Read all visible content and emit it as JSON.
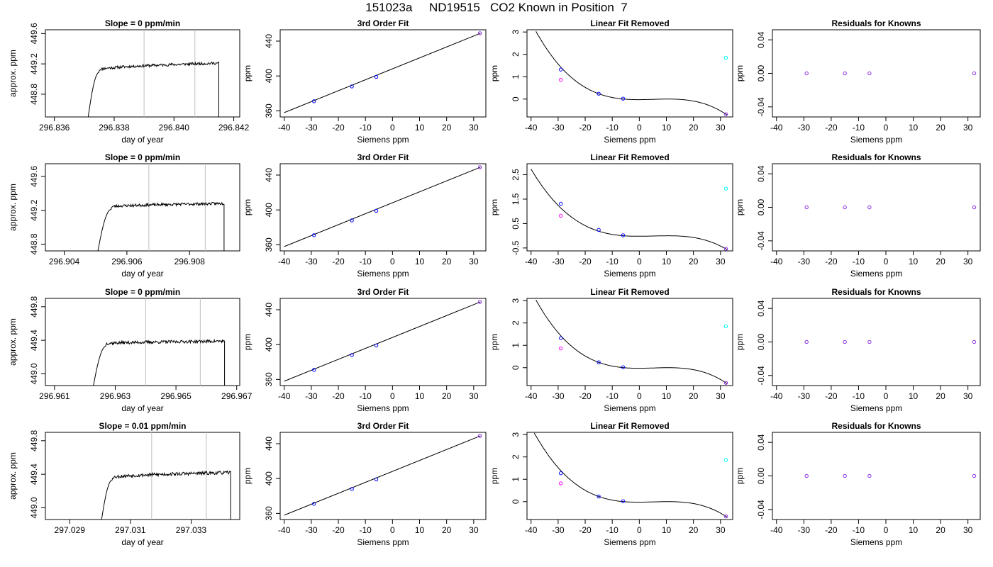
{
  "title": "151023a     ND19515   CO2 Known in Position  7",
  "colors": {
    "axis": "#000000",
    "line": "#000000",
    "vline": "#bebebe",
    "blue": "#0000ff",
    "magenta": "#ff00ff",
    "cyan": "#00ffff",
    "purple": "#8a2be2",
    "pink": "#ff66cc"
  },
  "chart_data": [
    {
      "type": "line",
      "title": "Slope =  0  ppm/min",
      "xlabel": "day of year",
      "ylabel": "approx. ppm",
      "xlim": [
        296.8357,
        296.8422
      ],
      "ylim": [
        448.5,
        449.65
      ],
      "xticks": [
        296.836,
        296.838,
        296.84,
        296.842
      ],
      "xtick_labels": [
        "296.836",
        "296.838",
        "296.840",
        "296.842"
      ],
      "yticks": [
        448.8,
        449.2,
        449.6
      ],
      "ytick_labels": [
        "448.8",
        "449.2",
        "449.6"
      ],
      "vlines": [
        296.839,
        296.8407
      ],
      "trace": {
        "x_start": 296.837,
        "x_rise_end": 296.8375,
        "x_end": 296.8415,
        "plateau_start": 449.12,
        "plateau_end": 449.21,
        "noise": 0.018,
        "seed": 11
      }
    },
    {
      "type": "scatter",
      "title": "3rd Order Fit",
      "xlabel": "Siemens ppm",
      "ylabel": "ppm",
      "xlim": [
        -41.5,
        34.5
      ],
      "ylim": [
        353,
        453
      ],
      "xticks": [
        -40,
        -30,
        -20,
        -10,
        0,
        10,
        20,
        30
      ],
      "xtick_labels": [
        "-40",
        "-30",
        "-20",
        "-10",
        "0",
        "10",
        "20",
        "30"
      ],
      "yticks": [
        360,
        400,
        440
      ],
      "ytick_labels": [
        "360",
        "400",
        "440"
      ],
      "line_x": [
        -40,
        32.5
      ],
      "line_y": [
        358,
        449
      ],
      "points": [
        {
          "x": -29.0,
          "y": 371,
          "color": "blue"
        },
        {
          "x": -15.0,
          "y": 388,
          "color": "blue"
        },
        {
          "x": -6.0,
          "y": 399,
          "color": "blue"
        },
        {
          "x": 32.3,
          "y": 449,
          "color": "purple"
        }
      ]
    },
    {
      "type": "scatter",
      "title": "Linear Fit Removed",
      "xlabel": "Siemens ppm",
      "ylabel": "ppm",
      "xlim": [
        -41.5,
        34.5
      ],
      "ylim": [
        -0.8,
        3.1
      ],
      "xticks": [
        -40,
        -30,
        -20,
        -10,
        0,
        10,
        20,
        30
      ],
      "xtick_labels": [
        "-40",
        "-30",
        "-20",
        "-10",
        "0",
        "10",
        "20",
        "30"
      ],
      "yticks": [
        0,
        1,
        2,
        3
      ],
      "ytick_labels": [
        "0",
        "1",
        "2",
        "3"
      ],
      "curve": {
        "x_from": -40,
        "x_to": 32.5,
        "roots": [
          -5.8,
          10.6
        ],
        "anchor_x": 32.0,
        "anchor_y": -0.68,
        "offset": 0
      },
      "points": [
        {
          "x": -29.0,
          "y": 1.32,
          "color": "blue"
        },
        {
          "x": -15.0,
          "y": 0.24,
          "color": "blue"
        },
        {
          "x": -6.0,
          "y": 0.02,
          "color": "blue"
        },
        {
          "x": 32.0,
          "y": -0.68,
          "color": "purple"
        },
        {
          "x": -29.0,
          "y": 0.86,
          "color": "magenta"
        },
        {
          "x": 32.0,
          "y": 1.85,
          "color": "cyan"
        }
      ]
    },
    {
      "type": "scatter",
      "title": "Residuals for Knowns",
      "xlabel": "Siemens ppm",
      "ylabel": "ppm",
      "xlim": [
        -41.5,
        34.5
      ],
      "ylim": [
        -0.052,
        0.052
      ],
      "xticks": [
        -40,
        -30,
        -20,
        -10,
        0,
        10,
        20,
        30
      ],
      "xtick_labels": [
        "-40",
        "-30",
        "-20",
        "-10",
        "0",
        "10",
        "20",
        "30"
      ],
      "yticks": [
        -0.04,
        0.0,
        0.04
      ],
      "ytick_labels": [
        "-0.04",
        "0.00",
        "0.04"
      ],
      "points": [
        {
          "x": -29.0,
          "y": 0.0,
          "color": "purple"
        },
        {
          "x": -15.0,
          "y": 0.0,
          "color": "purple"
        },
        {
          "x": -6.0,
          "y": 0.0,
          "color": "purple"
        },
        {
          "x": 32.3,
          "y": 0.0,
          "color": "purple"
        }
      ]
    },
    {
      "type": "line",
      "title": "Slope =  0  ppm/min",
      "xlabel": "day of year",
      "ylabel": "approx. ppm",
      "xlim": [
        296.9034,
        296.9096
      ],
      "ylim": [
        448.72,
        449.75
      ],
      "xticks": [
        296.904,
        296.906,
        296.908
      ],
      "xtick_labels": [
        "296.904",
        "296.906",
        "296.908"
      ],
      "yticks": [
        448.8,
        449.2,
        449.6
      ],
      "ytick_labels": [
        "448.8",
        "449.2",
        "449.6"
      ],
      "vlines": [
        296.9067,
        296.9085
      ],
      "trace": {
        "x_start": 296.9049,
        "x_rise_end": 296.9055,
        "x_end": 296.9091,
        "plateau_start": 449.24,
        "plateau_end": 449.28,
        "noise": 0.016,
        "seed": 23
      }
    },
    {
      "type": "scatter",
      "title": "3rd Order Fit",
      "xlabel": "Siemens ppm",
      "ylabel": "ppm",
      "xlim": [
        -41.5,
        34.5
      ],
      "ylim": [
        353,
        453
      ],
      "xticks": [
        -40,
        -30,
        -20,
        -10,
        0,
        10,
        20,
        30
      ],
      "xtick_labels": [
        "-40",
        "-30",
        "-20",
        "-10",
        "0",
        "10",
        "20",
        "30"
      ],
      "yticks": [
        360,
        400,
        440
      ],
      "ytick_labels": [
        "360",
        "400",
        "440"
      ],
      "line_x": [
        -40,
        32.5
      ],
      "line_y": [
        358,
        449
      ],
      "points": [
        {
          "x": -29.0,
          "y": 371,
          "color": "blue"
        },
        {
          "x": -15.0,
          "y": 388,
          "color": "blue"
        },
        {
          "x": -6.0,
          "y": 399,
          "color": "blue"
        },
        {
          "x": 32.3,
          "y": 449,
          "color": "purple"
        }
      ]
    },
    {
      "type": "scatter",
      "title": "Linear Fit Removed",
      "xlabel": "Siemens ppm",
      "ylabel": "ppm",
      "xlim": [
        -41.5,
        34.5
      ],
      "ylim": [
        -0.62,
        2.95
      ],
      "xticks": [
        -40,
        -30,
        -20,
        -10,
        0,
        10,
        20,
        30
      ],
      "xtick_labels": [
        "-40",
        "-30",
        "-20",
        "-10",
        "0",
        "10",
        "20",
        "30"
      ],
      "yticks": [
        -0.5,
        0.5,
        1.5,
        2.5
      ],
      "ytick_labels": [
        "-0.5",
        "0.5",
        "1.5",
        "2.5"
      ],
      "curve": {
        "x_from": -40,
        "x_to": 32.5,
        "roots": [
          -5.8,
          10.6
        ],
        "anchor_x": 32.0,
        "anchor_y": -0.54,
        "offset": 0
      },
      "points": [
        {
          "x": -29.0,
          "y": 1.31,
          "color": "blue"
        },
        {
          "x": -15.0,
          "y": 0.24,
          "color": "blue"
        },
        {
          "x": -6.0,
          "y": 0.02,
          "color": "blue"
        },
        {
          "x": 32.0,
          "y": -0.54,
          "color": "purple"
        },
        {
          "x": -29.0,
          "y": 0.82,
          "color": "magenta"
        },
        {
          "x": 32.0,
          "y": 1.93,
          "color": "cyan"
        }
      ]
    },
    {
      "type": "scatter",
      "title": "Residuals for Knowns",
      "xlabel": "Siemens ppm",
      "ylabel": "ppm",
      "xlim": [
        -41.5,
        34.5
      ],
      "ylim": [
        -0.052,
        0.052
      ],
      "xticks": [
        -40,
        -30,
        -20,
        -10,
        0,
        10,
        20,
        30
      ],
      "xtick_labels": [
        "-40",
        "-30",
        "-20",
        "-10",
        "0",
        "10",
        "20",
        "30"
      ],
      "yticks": [
        -0.04,
        0.0,
        0.04
      ],
      "ytick_labels": [
        "-0.04",
        "0.00",
        "0.04"
      ],
      "points": [
        {
          "x": -29.0,
          "y": 0.0,
          "color": "purple"
        },
        {
          "x": -15.0,
          "y": 0.0,
          "color": "purple"
        },
        {
          "x": -6.0,
          "y": 0.0,
          "color": "purple"
        },
        {
          "x": 32.3,
          "y": 0.0,
          "color": "purple"
        }
      ]
    },
    {
      "type": "line",
      "title": "Slope =  0  ppm/min",
      "xlabel": "day of year",
      "ylabel": "approx. ppm",
      "xlim": [
        296.9607,
        296.9671
      ],
      "ylim": [
        448.86,
        449.9
      ],
      "xticks": [
        296.961,
        296.963,
        296.965,
        296.967
      ],
      "xtick_labels": [
        "296.961",
        "296.963",
        "296.965",
        "296.967"
      ],
      "yticks": [
        449.0,
        449.4,
        449.8
      ],
      "ytick_labels": [
        "449.0",
        "449.4",
        "449.8"
      ],
      "vlines": [
        296.964,
        296.9658
      ],
      "trace": {
        "x_start": 296.9621,
        "x_rise_end": 296.9627,
        "x_end": 296.9666,
        "plateau_start": 449.36,
        "plateau_end": 449.39,
        "noise": 0.018,
        "seed": 37
      }
    },
    {
      "type": "scatter",
      "title": "3rd Order Fit",
      "xlabel": "Siemens ppm",
      "ylabel": "ppm",
      "xlim": [
        -41.5,
        34.5
      ],
      "ylim": [
        353,
        453
      ],
      "xticks": [
        -40,
        -30,
        -20,
        -10,
        0,
        10,
        20,
        30
      ],
      "xtick_labels": [
        "-40",
        "-30",
        "-20",
        "-10",
        "0",
        "10",
        "20",
        "30"
      ],
      "yticks": [
        360,
        400,
        440
      ],
      "ytick_labels": [
        "360",
        "400",
        "440"
      ],
      "line_x": [
        -40,
        32.5
      ],
      "line_y": [
        358,
        449
      ],
      "points": [
        {
          "x": -29.0,
          "y": 371,
          "color": "blue"
        },
        {
          "x": -15.0,
          "y": 388,
          "color": "blue"
        },
        {
          "x": -6.0,
          "y": 399,
          "color": "blue"
        },
        {
          "x": 32.3,
          "y": 449,
          "color": "purple"
        }
      ]
    },
    {
      "type": "scatter",
      "title": "Linear Fit Removed",
      "xlabel": "Siemens ppm",
      "ylabel": "ppm",
      "xlim": [
        -41.5,
        34.5
      ],
      "ylim": [
        -0.8,
        3.1
      ],
      "xticks": [
        -40,
        -30,
        -20,
        -10,
        0,
        10,
        20,
        30
      ],
      "xtick_labels": [
        "-40",
        "-30",
        "-20",
        "-10",
        "0",
        "10",
        "20",
        "30"
      ],
      "yticks": [
        0,
        1,
        2,
        3
      ],
      "ytick_labels": [
        "0",
        "1",
        "2",
        "3"
      ],
      "curve": {
        "x_from": -40,
        "x_to": 32.5,
        "roots": [
          -5.8,
          10.6
        ],
        "anchor_x": 32.0,
        "anchor_y": -0.68,
        "offset": 0
      },
      "points": [
        {
          "x": -29.0,
          "y": 1.32,
          "color": "blue"
        },
        {
          "x": -15.0,
          "y": 0.24,
          "color": "blue"
        },
        {
          "x": -6.0,
          "y": 0.02,
          "color": "blue"
        },
        {
          "x": 32.0,
          "y": -0.68,
          "color": "purple"
        },
        {
          "x": -29.0,
          "y": 0.86,
          "color": "magenta"
        },
        {
          "x": 32.0,
          "y": 1.85,
          "color": "cyan"
        }
      ]
    },
    {
      "type": "scatter",
      "title": "Residuals for Knowns",
      "xlabel": "Siemens ppm",
      "ylabel": "ppm",
      "xlim": [
        -41.5,
        34.5
      ],
      "ylim": [
        -0.052,
        0.052
      ],
      "xticks": [
        -40,
        -30,
        -20,
        -10,
        0,
        10,
        20,
        30
      ],
      "xtick_labels": [
        "-40",
        "-30",
        "-20",
        "-10",
        "0",
        "10",
        "20",
        "30"
      ],
      "yticks": [
        -0.04,
        0.0,
        0.04
      ],
      "ytick_labels": [
        "-0.04",
        "0.00",
        "0.04"
      ],
      "points": [
        {
          "x": -29.0,
          "y": 0.0,
          "color": "purple"
        },
        {
          "x": -15.0,
          "y": 0.0,
          "color": "purple"
        },
        {
          "x": -6.0,
          "y": 0.0,
          "color": "purple"
        },
        {
          "x": 32.3,
          "y": 0.0,
          "color": "purple"
        }
      ]
    },
    {
      "type": "line",
      "title": "Slope =  0.01  ppm/min",
      "xlabel": "day of year",
      "ylabel": "approx. ppm",
      "xlim": [
        297.0282,
        297.0346
      ],
      "ylim": [
        448.86,
        449.9
      ],
      "xticks": [
        297.029,
        297.031,
        297.033
      ],
      "xtick_labels": [
        "297.029",
        "297.031",
        "297.033"
      ],
      "yticks": [
        449.0,
        449.4,
        449.8
      ],
      "ytick_labels": [
        "449.0",
        "449.4",
        "449.8"
      ],
      "vlines": [
        297.0317,
        297.0335
      ],
      "trace": {
        "x_start": 297.0299,
        "x_rise_end": 297.0304,
        "x_end": 297.0343,
        "plateau_start": 449.36,
        "plateau_end": 449.42,
        "noise": 0.02,
        "seed": 53
      }
    },
    {
      "type": "scatter",
      "title": "3rd Order Fit",
      "xlabel": "Siemens ppm",
      "ylabel": "ppm",
      "xlim": [
        -41.5,
        34.5
      ],
      "ylim": [
        353,
        453
      ],
      "xticks": [
        -40,
        -30,
        -20,
        -10,
        0,
        10,
        20,
        30
      ],
      "xtick_labels": [
        "-40",
        "-30",
        "-20",
        "-10",
        "0",
        "10",
        "20",
        "30"
      ],
      "yticks": [
        360,
        400,
        440
      ],
      "ytick_labels": [
        "360",
        "400",
        "440"
      ],
      "line_x": [
        -40,
        32.5
      ],
      "line_y": [
        358,
        449
      ],
      "points": [
        {
          "x": -29.0,
          "y": 371,
          "color": "blue"
        },
        {
          "x": -15.0,
          "y": 388,
          "color": "blue"
        },
        {
          "x": -6.0,
          "y": 399,
          "color": "blue"
        },
        {
          "x": 32.3,
          "y": 449,
          "color": "purple"
        }
      ]
    },
    {
      "type": "scatter",
      "title": "Linear Fit Removed",
      "xlabel": "Siemens ppm",
      "ylabel": "ppm",
      "xlim": [
        -41.5,
        34.5
      ],
      "ylim": [
        -0.8,
        3.1
      ],
      "xticks": [
        -40,
        -30,
        -20,
        -10,
        0,
        10,
        20,
        30
      ],
      "xtick_labels": [
        "-40",
        "-30",
        "-20",
        "-10",
        "0",
        "10",
        "20",
        "30"
      ],
      "yticks": [
        0,
        1,
        2,
        3
      ],
      "ytick_labels": [
        "0",
        "1",
        "2",
        "3"
      ],
      "curve": {
        "x_from": -40,
        "x_to": 32.5,
        "roots": [
          -5.8,
          10.6
        ],
        "anchor_x": 32.0,
        "anchor_y": -0.66,
        "offset": 0
      },
      "points": [
        {
          "x": -29.0,
          "y": 1.27,
          "color": "blue"
        },
        {
          "x": -15.0,
          "y": 0.23,
          "color": "blue"
        },
        {
          "x": -6.0,
          "y": 0.02,
          "color": "blue"
        },
        {
          "x": 32.0,
          "y": -0.66,
          "color": "purple"
        },
        {
          "x": -29.0,
          "y": 0.82,
          "color": "magenta"
        },
        {
          "x": 32.0,
          "y": 1.86,
          "color": "cyan"
        }
      ]
    },
    {
      "type": "scatter",
      "title": "Residuals for Knowns",
      "xlabel": "Siemens ppm",
      "ylabel": "ppm",
      "xlim": [
        -41.5,
        34.5
      ],
      "ylim": [
        -0.052,
        0.052
      ],
      "xticks": [
        -40,
        -30,
        -20,
        -10,
        0,
        10,
        20,
        30
      ],
      "xtick_labels": [
        "-40",
        "-30",
        "-20",
        "-10",
        "0",
        "10",
        "20",
        "30"
      ],
      "yticks": [
        -0.04,
        0.0,
        0.04
      ],
      "ytick_labels": [
        "-0.04",
        "0.00",
        "0.04"
      ],
      "points": [
        {
          "x": -29.0,
          "y": 0.0,
          "color": "purple"
        },
        {
          "x": -15.0,
          "y": 0.0,
          "color": "purple"
        },
        {
          "x": -6.0,
          "y": 0.0,
          "color": "purple"
        },
        {
          "x": 32.3,
          "y": 0.0,
          "color": "purple"
        }
      ]
    }
  ]
}
